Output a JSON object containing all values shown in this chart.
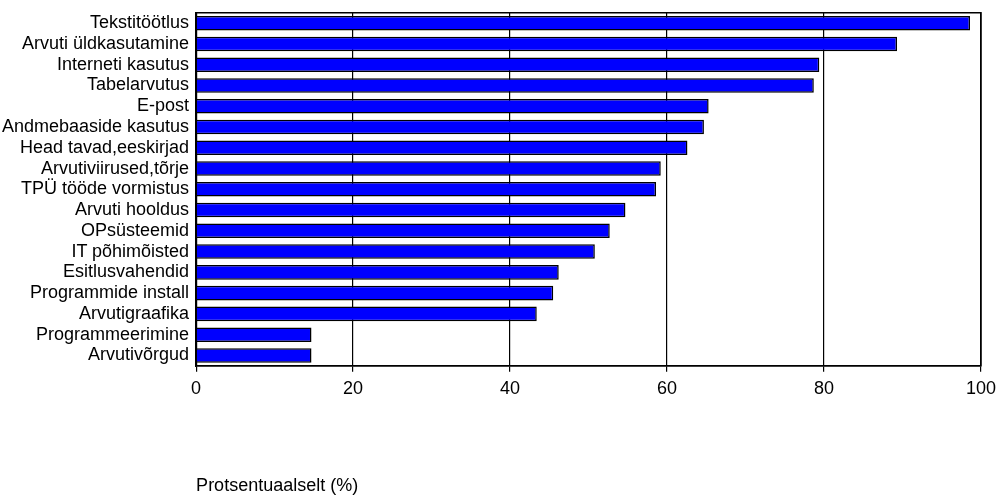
{
  "chart_data": {
    "type": "bar",
    "orientation": "horizontal",
    "xlabel": "Protsentuaalselt (%)",
    "categories": [
      "Tekstitöötlus",
      "Arvuti üldkasutamine",
      "Interneti kasutus",
      "Tabelarvutus",
      "E-post",
      "Andmebaaside kasutus",
      "Head tavad,eeskirjad",
      "Arvutiviirused,tõrje",
      "TPÜ tööde vormistus",
      "Arvuti hooldus",
      "OPsüsteemid",
      "IT põhimõisted",
      "Esitlusvahendid",
      "Programmide install",
      "Arvutigraafika",
      "Programmeerimine",
      "Arvutivõrgud"
    ],
    "values": [
      98.6,
      89.3,
      79.4,
      78.7,
      65.3,
      64.7,
      62.6,
      59.2,
      58.6,
      54.7,
      52.7,
      50.8,
      46.2,
      45.5,
      43.4,
      14.7,
      14.7
    ],
    "color": "#0000ff",
    "xlim": [
      0,
      100
    ],
    "xticks": [
      0,
      20,
      40,
      60,
      80,
      100
    ],
    "grid": "x",
    "legend": false
  }
}
